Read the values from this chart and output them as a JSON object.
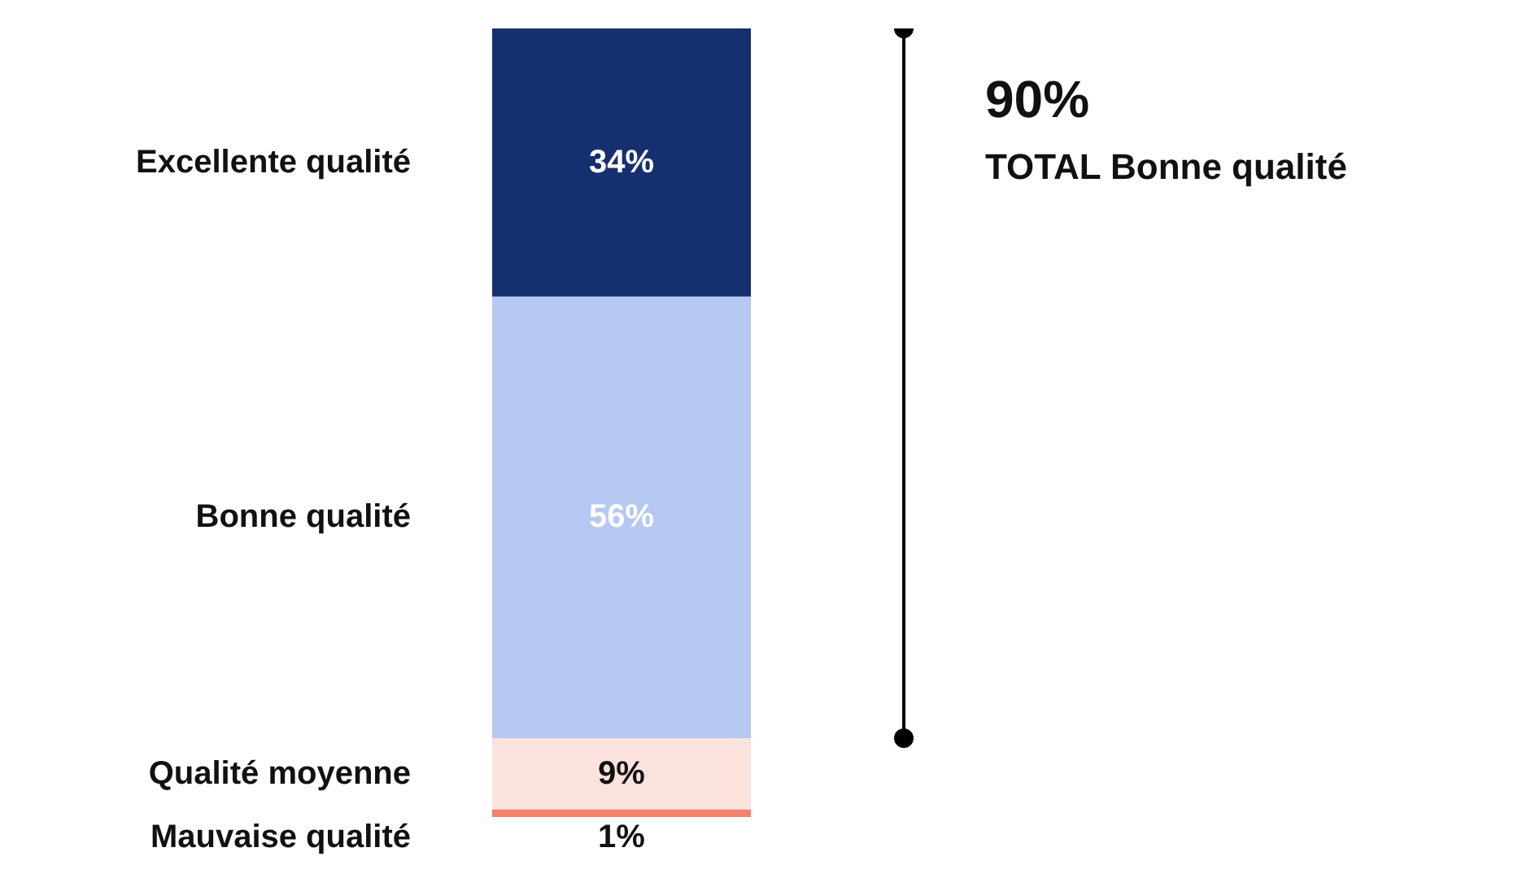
{
  "chart_data": {
    "type": "bar",
    "stacked": true,
    "categories": [
      null
    ],
    "series": [
      {
        "name": "Mauvaise qualité",
        "color": "#f4806e",
        "values": [
          1
        ],
        "value_labels": [
          "1%"
        ]
      },
      {
        "name": "Qualité moyenne",
        "color": "#fde3dd",
        "values": [
          9
        ],
        "value_labels": [
          "9%"
        ]
      },
      {
        "name": "Bonne qualité",
        "color": "#b4c8f2",
        "values": [
          56
        ],
        "value_labels": [
          "56%"
        ]
      },
      {
        "name": "Excellente qualité",
        "color": "#152f6f",
        "values": [
          34
        ],
        "value_labels": [
          "34%"
        ]
      }
    ],
    "annotations": [
      "90%",
      "TOTAL Bonne qualité"
    ]
  }
}
